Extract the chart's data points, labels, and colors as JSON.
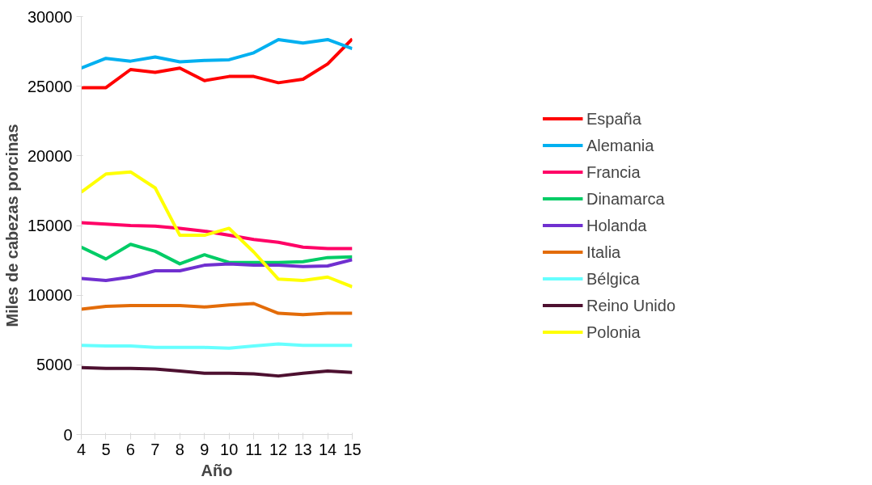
{
  "chart_data": {
    "type": "line",
    "xlabel": "Año",
    "ylabel": "Miles de cabezas porcinas",
    "x": [
      4,
      5,
      6,
      7,
      8,
      9,
      10,
      11,
      12,
      13,
      14,
      15
    ],
    "xlim": [
      4,
      15
    ],
    "xticks": [
      4,
      5,
      6,
      7,
      8,
      9,
      10,
      11,
      12,
      13,
      14,
      15
    ],
    "ylim": [
      0,
      30000
    ],
    "yticks": [
      0,
      5000,
      10000,
      15000,
      20000,
      25000,
      30000
    ],
    "grid": false,
    "legend": "right",
    "marker": "none",
    "line_style": "solid",
    "series": [
      {
        "name": "España",
        "color": "#ff0000",
        "values": [
          24900,
          24900,
          26200,
          26000,
          26300,
          25400,
          25700,
          25700,
          25250,
          25500,
          26600,
          28400
        ]
      },
      {
        "name": "Alemania",
        "color": "#00b0f0",
        "values": [
          26300,
          27000,
          26800,
          27100,
          26750,
          26850,
          26900,
          27400,
          28350,
          28100,
          28350,
          27700
        ]
      },
      {
        "name": "Francia",
        "color": "#ff0066",
        "values": [
          15200,
          15100,
          15000,
          14950,
          14800,
          14600,
          14300,
          14000,
          13800,
          13450,
          13350,
          13350
        ]
      },
      {
        "name": "Dinamarca",
        "color": "#00cc66",
        "values": [
          13450,
          12600,
          13650,
          13150,
          12250,
          12900,
          12350,
          12350,
          12350,
          12400,
          12700,
          12750
        ]
      },
      {
        "name": "Holanda",
        "color": "#7030d0",
        "values": [
          11200,
          11050,
          11300,
          11750,
          11750,
          12150,
          12250,
          12150,
          12150,
          12050,
          12100,
          12550
        ]
      },
      {
        "name": "Italia",
        "color": "#e36c09",
        "values": [
          9000,
          9200,
          9250,
          9250,
          9250,
          9150,
          9300,
          9400,
          8700,
          8600,
          8700,
          8700
        ]
      },
      {
        "name": "Bélgica",
        "color": "#66ffff",
        "values": [
          6400,
          6350,
          6350,
          6250,
          6250,
          6250,
          6200,
          6350,
          6500,
          6400,
          6400,
          6400
        ]
      },
      {
        "name": "Reino Unido",
        "color": "#4d1030",
        "values": [
          4800,
          4750,
          4750,
          4700,
          4550,
          4400,
          4400,
          4350,
          4200,
          4400,
          4550,
          4450
        ]
      },
      {
        "name": "Polonia",
        "color": "#ffff00",
        "values": [
          17400,
          18700,
          18850,
          17700,
          14300,
          14300,
          14800,
          13100,
          11150,
          11050,
          11300,
          10600
        ]
      }
    ]
  }
}
